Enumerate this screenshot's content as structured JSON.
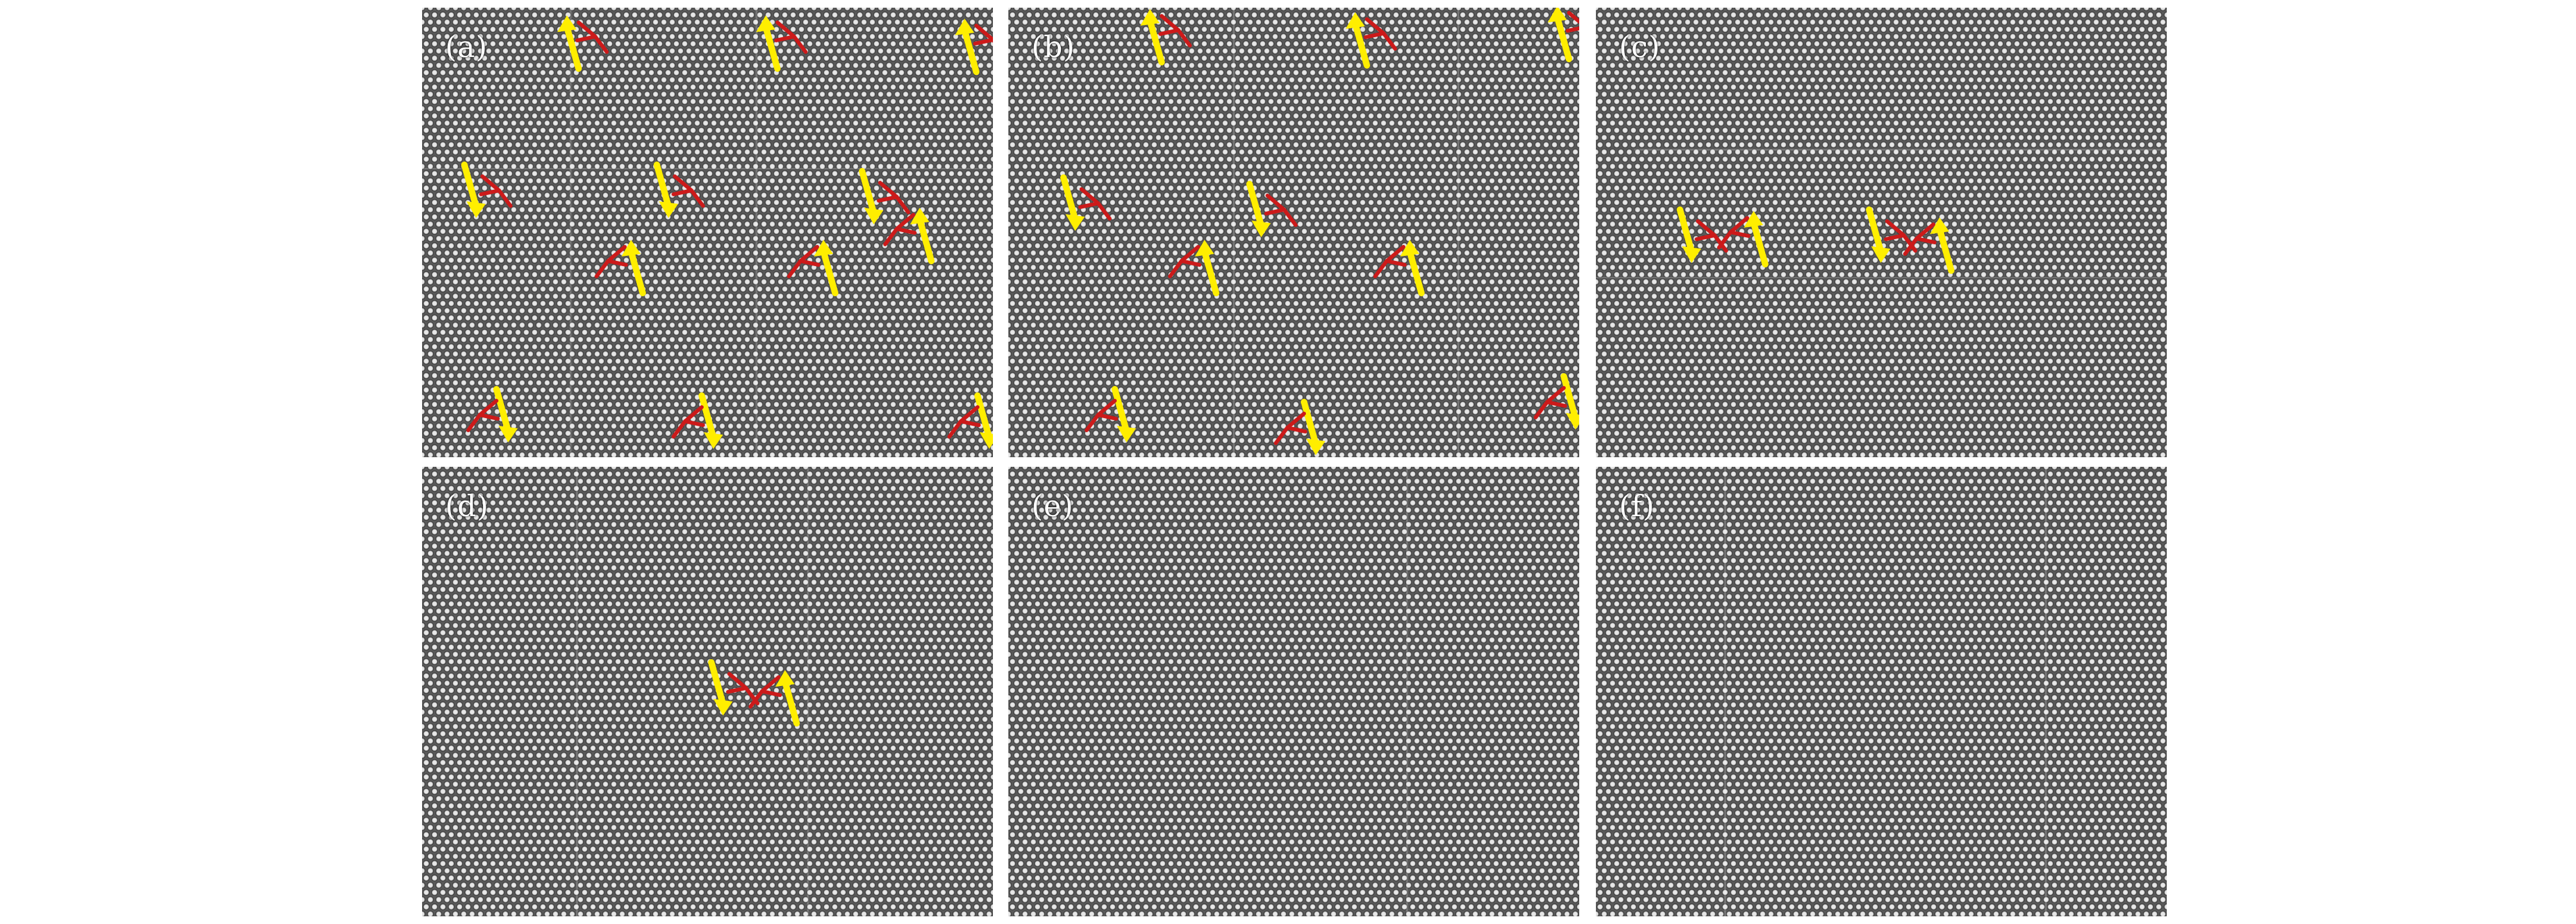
{
  "figure": {
    "panels": [
      {
        "id": "a",
        "label": "(a)"
      },
      {
        "id": "b",
        "label": "(b)"
      },
      {
        "id": "c",
        "label": "(c)"
      },
      {
        "id": "d",
        "label": "(d)"
      },
      {
        "id": "e",
        "label": "(e)"
      },
      {
        "id": "f",
        "label": "(f)"
      }
    ]
  },
  "colors": {
    "arrow": "#ffee00",
    "defect": "#cc1a1a",
    "background": "#ffffff"
  }
}
